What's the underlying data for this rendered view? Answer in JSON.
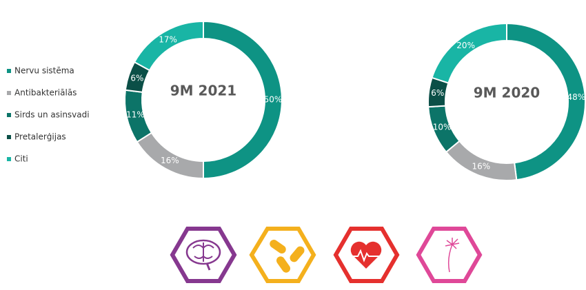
{
  "chart_data": [
    {
      "type": "pie",
      "title": "9M 2021",
      "categories": [
        "Nervu sistēma",
        "Antibakteriālās",
        "Sirds un asinsvadi",
        "Pretalerģijas",
        "Citi"
      ],
      "values": [
        50,
        16,
        11,
        6,
        17
      ],
      "value_labels": [
        "50%",
        "16%",
        "11%",
        "6%",
        "17%"
      ],
      "colors": [
        "#0e9384",
        "#a8a9ab",
        "#0c7468",
        "#0b4f47",
        "#19b5a5"
      ],
      "legend": "left"
    },
    {
      "type": "pie",
      "title": "9M 2020",
      "values": [
        48,
        16,
        10,
        6,
        20
      ],
      "value_labels": [
        "48%",
        "16%",
        "10%",
        "6%",
        "20%"
      ],
      "colors": [
        "#0e9384",
        "#a8a9ab",
        "#0c7468",
        "#0b4f47",
        "#19b5a5"
      ]
    }
  ]
}
